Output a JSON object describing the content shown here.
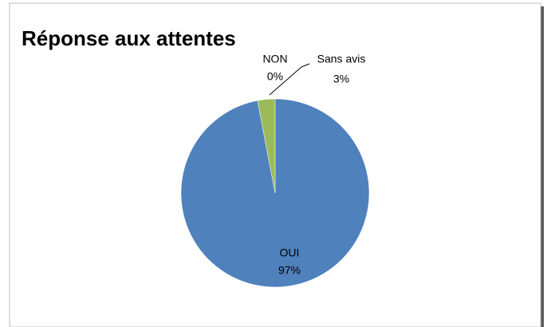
{
  "chart_data": {
    "type": "pie",
    "title": "Réponse aux attentes",
    "categories": [
      "OUI",
      "NON",
      "Sans avis"
    ],
    "values": [
      97,
      0,
      3
    ],
    "value_labels": [
      "97%",
      "0%",
      "3%"
    ],
    "colors": [
      "#4f81bd",
      "#c0504d",
      "#9bbb59"
    ]
  }
}
